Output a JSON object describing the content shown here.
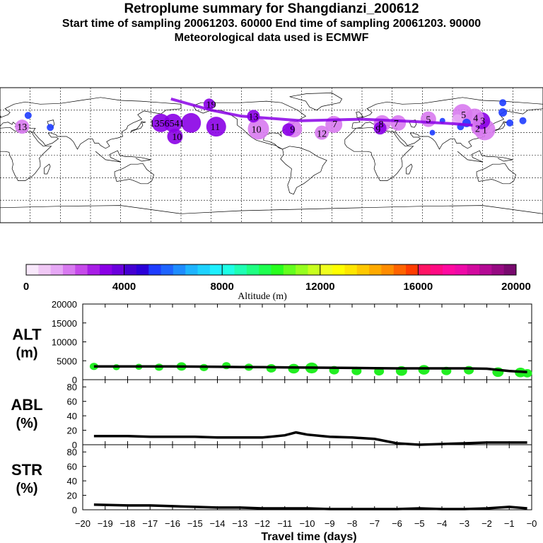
{
  "header": {
    "title": "Retroplume summary for Shangdianzi_200612",
    "sampling": "Start time of sampling 20061203. 60000     End time of sampling 20061203. 90000",
    "met": "Meteorological data used is ECMWF"
  },
  "colors": {
    "plume_violet": "#8a00e6",
    "plume_light": "#d87af0",
    "plume_pale": "#e6a8f5",
    "blue": "#1e3cff",
    "green_marker": "#22ee22",
    "line": "#000000"
  },
  "colorbar": {
    "title": "Altitude (m)",
    "tick_labels": [
      "0",
      "4000",
      "8000",
      "12000",
      "16000",
      "20000"
    ],
    "min": 0,
    "max": 20000,
    "colors": [
      "#f8e8fb",
      "#f0c8f5",
      "#e6a8f5",
      "#d87af0",
      "#c64aea",
      "#a81ee6",
      "#8a00e6",
      "#6a00dd",
      "#4400d2",
      "#2a00d8",
      "#1e3cff",
      "#1e64ff",
      "#1e8cff",
      "#1eb4ff",
      "#1ed2ff",
      "#1ef0ff",
      "#1effe6",
      "#1effb4",
      "#1eff82",
      "#1eff50",
      "#28ff1e",
      "#64ff1e",
      "#96ff1e",
      "#c8ff1e",
      "#f0ff1e",
      "#ffff00",
      "#ffe600",
      "#ffc800",
      "#ffaa00",
      "#ff8c00",
      "#ff6400",
      "#ff3c00",
      "#ff1464",
      "#ff0a82",
      "#ff0aa0",
      "#ee0aa8",
      "#d20a9e",
      "#b40a94",
      "#960a82",
      "#780a6e"
    ]
  },
  "map": {
    "labels": [
      {
        "text": "1",
        "lon": 122,
        "lat": 34
      },
      {
        "text": "2",
        "lon": 115,
        "lat": 36
      },
      {
        "text": "3",
        "lon": 120,
        "lat": 46
      },
      {
        "text": "4",
        "lon": 113,
        "lat": 50
      },
      {
        "text": "5",
        "lon": 101,
        "lat": 54
      },
      {
        "text": "5",
        "lon": 66,
        "lat": 48
      },
      {
        "text": "7",
        "lon": 34,
        "lat": 43
      },
      {
        "text": "8",
        "lon": 19,
        "lat": 42
      },
      {
        "text": "9",
        "lon": 16,
        "lat": 35
      },
      {
        "text": "7",
        "lon": -27,
        "lat": 42
      },
      {
        "text": "9",
        "lon": -69,
        "lat": 35
      },
      {
        "text": "10",
        "lon": -105,
        "lat": 35
      },
      {
        "text": "11",
        "lon": -146,
        "lat": 38
      },
      {
        "text": "13",
        "lon": -108,
        "lat": 52
      },
      {
        "text": "19",
        "lon": -150,
        "lat": 68
      },
      {
        "text": "1356541",
        "lon": -194,
        "lat": 43
      },
      {
        "text": "10",
        "lon": -184,
        "lat": 25
      },
      {
        "text": "12",
        "lon": -40,
        "lat": 29
      },
      {
        "text": "13",
        "lon": -338,
        "lat": 38
      }
    ]
  },
  "panels": {
    "alt": {
      "label_top": "ALT",
      "label_bottom": "(m)",
      "ticks": [
        "20000",
        "15000",
        "10000",
        "5000",
        "0"
      ]
    },
    "abl": {
      "label_top": "ABL",
      "label_bottom": "(%)",
      "ticks": [
        "80",
        "60",
        "40",
        "20",
        "0"
      ]
    },
    "str": {
      "label_top": "STR",
      "label_bottom": "(%)",
      "ticks": [
        "80",
        "60",
        "40",
        "20",
        "0"
      ]
    },
    "x_ticks": [
      "-20",
      "-19",
      "-18",
      "-17",
      "-16",
      "-15",
      "-14",
      "-13",
      "-12",
      "-11",
      "-10",
      "-9",
      "-8",
      "-7",
      "-6",
      "-5",
      "-4",
      "-3",
      "-2",
      "-1",
      "-0"
    ],
    "xlabel": "Travel time (days)"
  },
  "chart_data": [
    {
      "type": "line",
      "title": "ALT (m)",
      "xlabel": "Travel time (days)",
      "ylabel": "ALT (m)",
      "xlim": [
        -20,
        0
      ],
      "ylim": [
        0,
        20000
      ],
      "x": [
        -19.5,
        -19,
        -18,
        -17,
        -16,
        -15,
        -14,
        -13,
        -12,
        -11,
        -10,
        -9,
        -8,
        -7,
        -6,
        -5,
        -4,
        -3,
        -2,
        -1,
        -0.2
      ],
      "values": [
        3500,
        3500,
        3500,
        3500,
        3500,
        3450,
        3400,
        3350,
        3300,
        3250,
        3200,
        3150,
        3100,
        3050,
        3000,
        3000,
        3000,
        3000,
        2900,
        2300,
        2000
      ],
      "markers": [
        {
          "x": -19.5,
          "y": 3500,
          "r": 6
        },
        {
          "x": -18.5,
          "y": 3300,
          "r": 5
        },
        {
          "x": -17.5,
          "y": 3400,
          "r": 5
        },
        {
          "x": -16.6,
          "y": 3300,
          "r": 6
        },
        {
          "x": -15.6,
          "y": 3500,
          "r": 7
        },
        {
          "x": -14.6,
          "y": 3200,
          "r": 6
        },
        {
          "x": -13.6,
          "y": 3700,
          "r": 6
        },
        {
          "x": -12.6,
          "y": 3300,
          "r": 6
        },
        {
          "x": -11.6,
          "y": 3000,
          "r": 7
        },
        {
          "x": -10.6,
          "y": 2900,
          "r": 8
        },
        {
          "x": -9.8,
          "y": 3100,
          "r": 9
        },
        {
          "x": -8.8,
          "y": 2500,
          "r": 7
        },
        {
          "x": -7.8,
          "y": 2300,
          "r": 7
        },
        {
          "x": -6.8,
          "y": 2200,
          "r": 7
        },
        {
          "x": -5.8,
          "y": 2300,
          "r": 8
        },
        {
          "x": -4.8,
          "y": 2600,
          "r": 8
        },
        {
          "x": -3.8,
          "y": 2300,
          "r": 7
        },
        {
          "x": -2.8,
          "y": 2500,
          "r": 7
        },
        {
          "x": -1.5,
          "y": 2000,
          "r": 8
        },
        {
          "x": -0.5,
          "y": 1900,
          "r": 8
        },
        {
          "x": -0.2,
          "y": 1700,
          "r": 7
        }
      ]
    },
    {
      "type": "line",
      "title": "ABL (%)",
      "xlabel": "Travel time (days)",
      "ylabel": "ABL (%)",
      "xlim": [
        -20,
        0
      ],
      "ylim": [
        0,
        90
      ],
      "x": [
        -19.5,
        -18,
        -17,
        -16,
        -15,
        -14,
        -13,
        -12,
        -11,
        -10.5,
        -10,
        -9,
        -8,
        -7,
        -6,
        -5,
        -4,
        -3,
        -2,
        -1,
        -0.2
      ],
      "values": [
        12,
        12,
        11,
        11,
        11,
        10,
        10,
        10,
        13,
        17,
        14,
        11,
        10,
        8,
        2,
        0,
        1,
        2,
        3,
        3,
        3
      ]
    },
    {
      "type": "line",
      "title": "STR (%)",
      "xlabel": "Travel time (days)",
      "ylabel": "STR (%)",
      "xlim": [
        -20,
        0
      ],
      "ylim": [
        0,
        90
      ],
      "x": [
        -19.5,
        -18,
        -17,
        -16,
        -15,
        -14,
        -13,
        -12,
        -11,
        -10,
        -9,
        -8,
        -7,
        -6,
        -5,
        -4,
        -3,
        -2,
        -1,
        -0.2
      ],
      "values": [
        7,
        6,
        6,
        5,
        4,
        3,
        3,
        2,
        2,
        2,
        1,
        1,
        1,
        1,
        2,
        1,
        1,
        2,
        4,
        2
      ]
    }
  ]
}
